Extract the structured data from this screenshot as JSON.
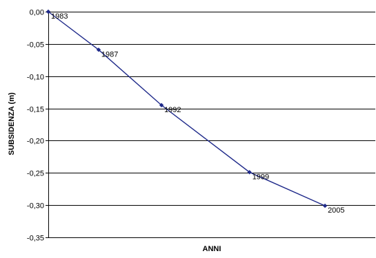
{
  "chart_data": {
    "type": "line",
    "title": "",
    "xlabel": "ANNI",
    "ylabel": "SUBSIDENZA (m)",
    "x": [
      1983,
      1987,
      1992,
      1999,
      2005
    ],
    "series": [
      {
        "values": [
          0.0,
          -0.059,
          -0.145,
          -0.249,
          -0.301
        ],
        "point_labels": [
          "1983",
          "1987",
          "1992",
          "1999",
          "2005"
        ],
        "color": "#1f2a8a",
        "marker": "diamond"
      }
    ],
    "ylim": [
      -0.35,
      0.0
    ],
    "xlim": [
      1983,
      2009
    ],
    "yticks": [
      0.0,
      -0.05,
      -0.1,
      -0.15,
      -0.2,
      -0.25,
      -0.3,
      -0.35
    ],
    "ytick_labels": [
      "0,00",
      "-0,05",
      "-0,10",
      "-0,15",
      "-0,20",
      "-0,25",
      "-0,30",
      "-0,35"
    ],
    "grid": "horizontal",
    "legend": "none"
  }
}
